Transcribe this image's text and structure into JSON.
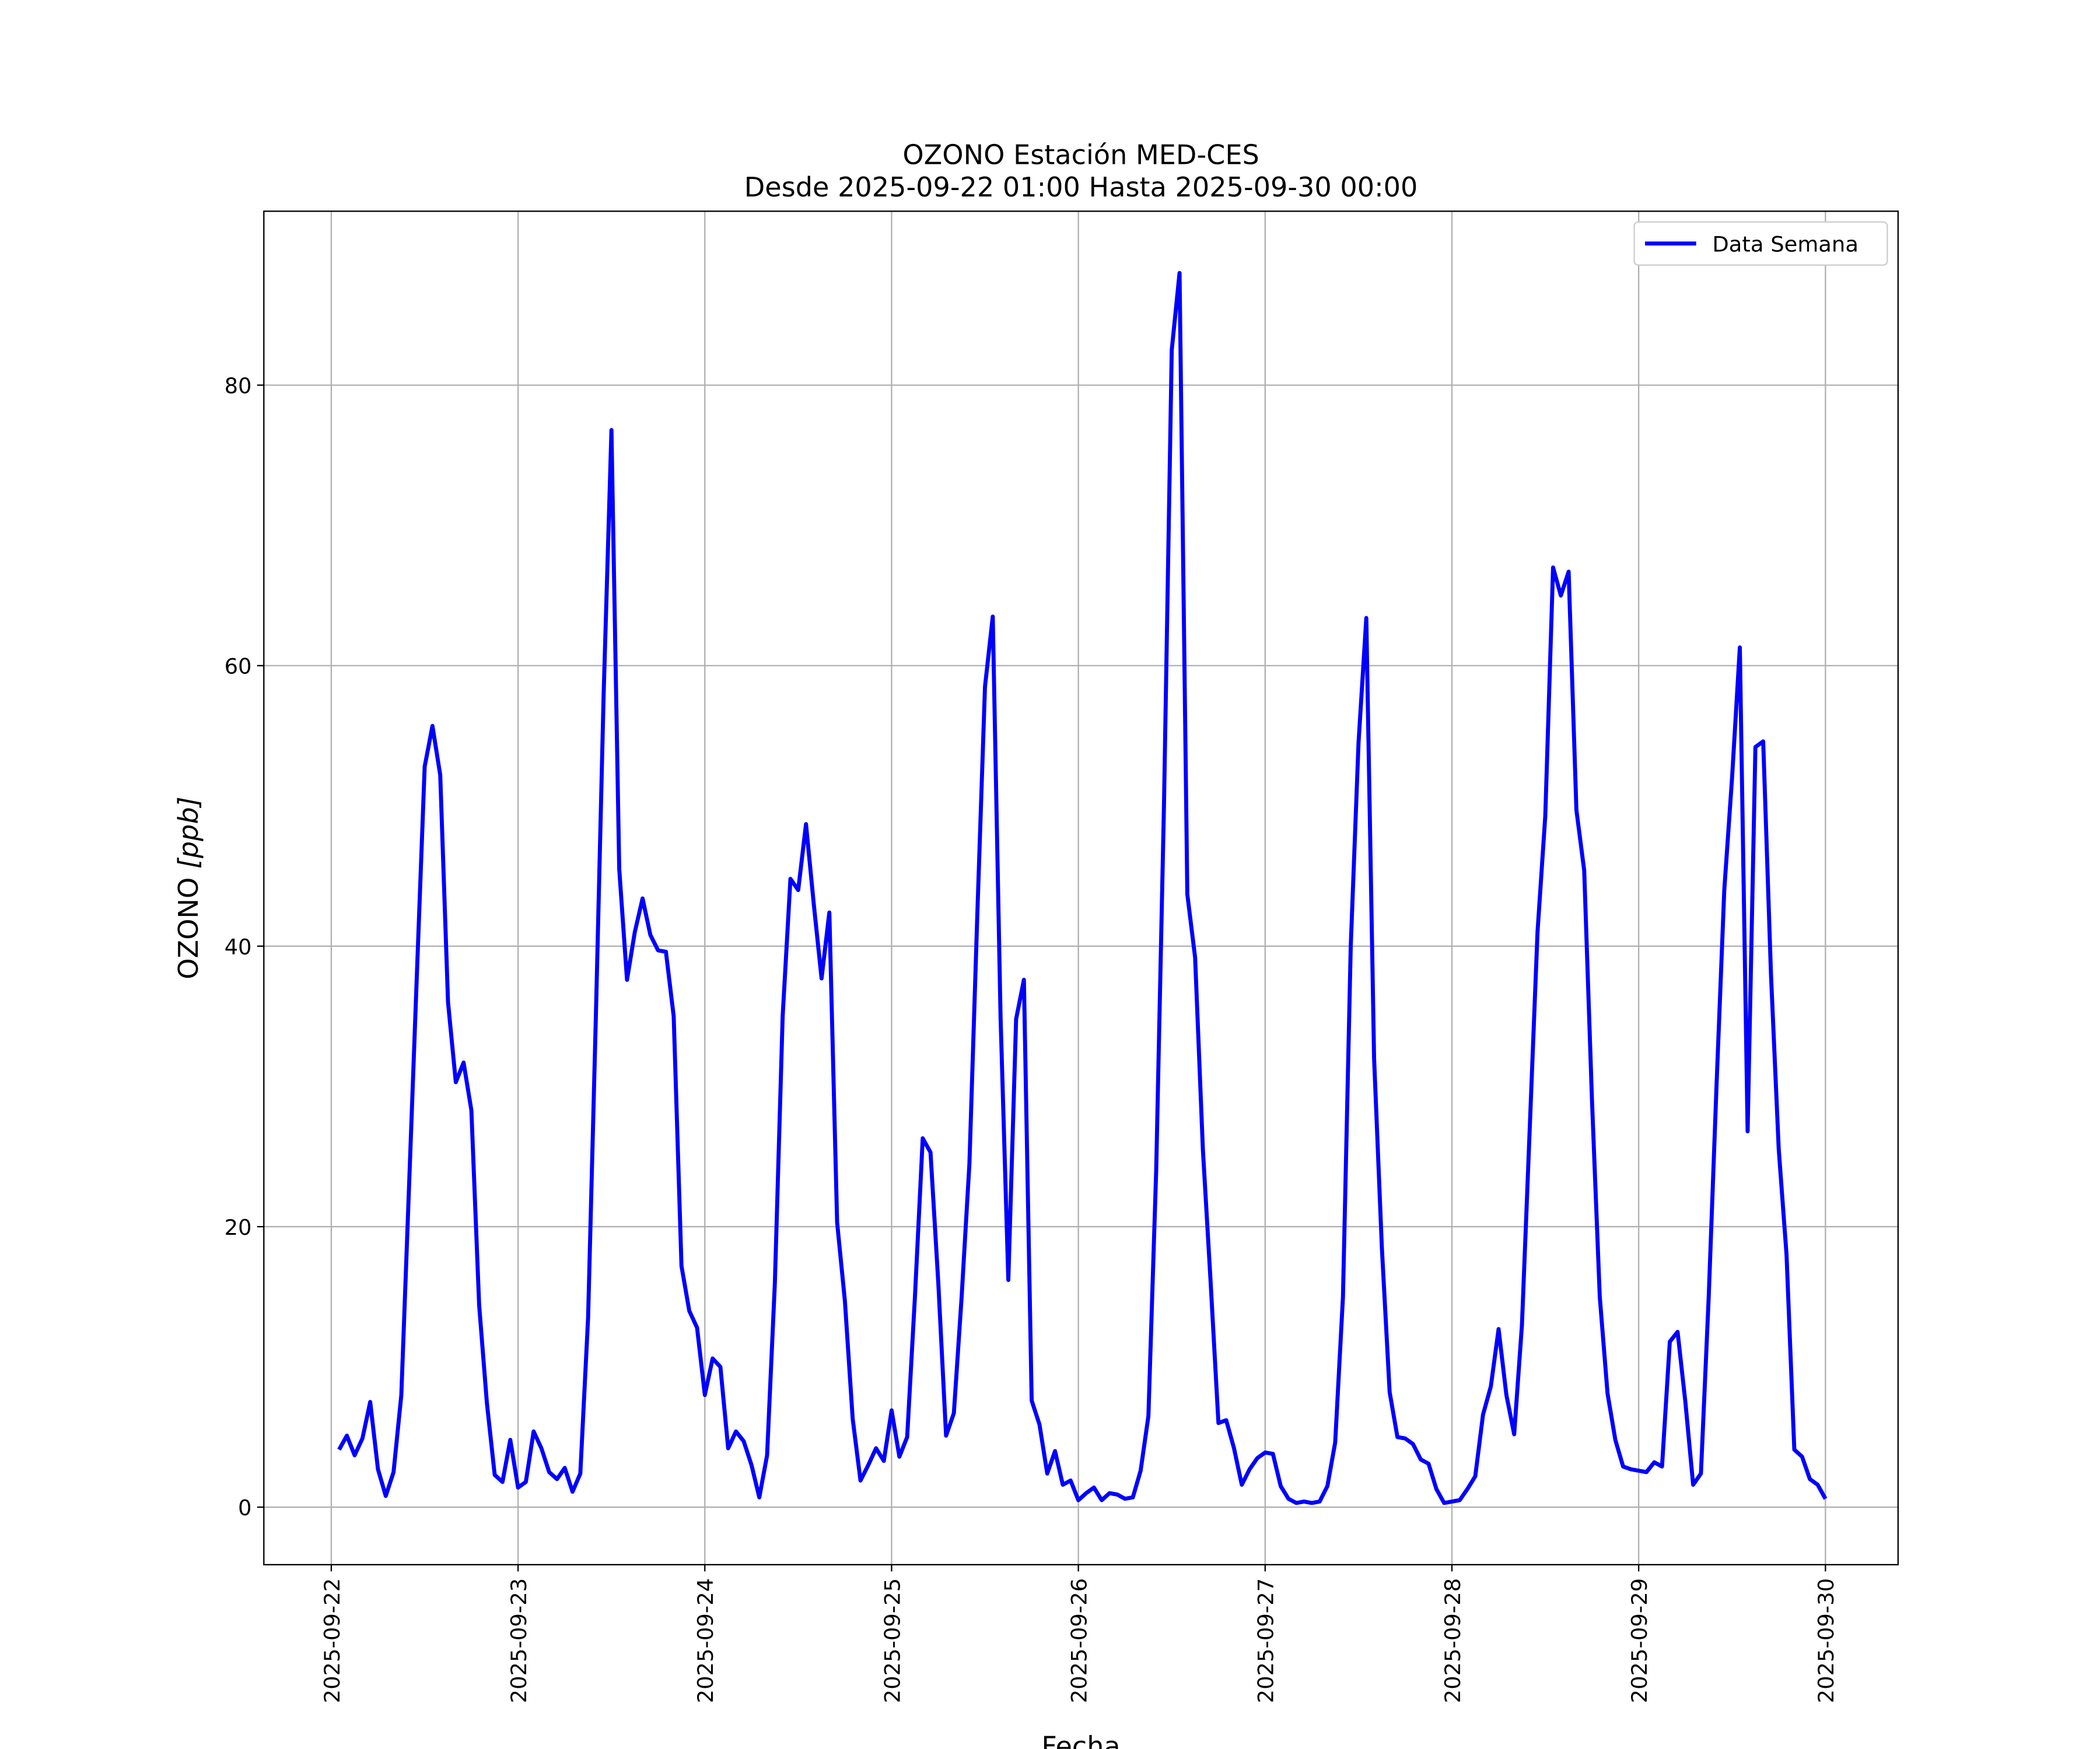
{
  "chart_data": {
    "type": "line",
    "title": "OZONO Estación MED-CES",
    "subtitle": "Desde 2025-09-22 01:00 Hasta 2025-09-30 00:00",
    "xlabel": "Fecha",
    "ylabel": "OZONO [ppb]",
    "ylabel_main": "OZONO ",
    "ylabel_unit": "[ppb]",
    "ylim": [
      -4.1,
      92.4
    ],
    "xlim": [
      "2025-09-21 15:20",
      "2025-09-30 09:20"
    ],
    "grid": true,
    "legend_placement": "top-right",
    "yticks": [
      "0",
      "20",
      "40",
      "60",
      "80"
    ],
    "xticks": [
      "2025-09-22",
      "2025-09-23",
      "2025-09-24",
      "2025-09-25",
      "2025-09-26",
      "2025-09-27",
      "2025-09-28",
      "2025-09-29",
      "2025-09-30"
    ],
    "series": [
      {
        "name": "Data Semana",
        "color": "#0000ff",
        "x_first": "2025-09-22 01:00",
        "x_last": "2025-09-30 00:00",
        "x_step": "1 hour",
        "values": [
          4.1,
          5.1,
          3.7,
          4.9,
          7.5,
          2.7,
          0.8,
          2.5,
          8.0,
          23,
          38,
          52.8,
          55.7,
          52.2,
          36,
          30.3,
          31.7,
          28.3,
          14.4,
          7.4,
          2.3,
          1.8,
          4.8,
          1.4,
          1.8,
          5.4,
          4.2,
          2.5,
          2.0,
          2.8,
          1.1,
          2.4,
          13.5,
          35,
          58,
          76.8,
          45.5,
          37.6,
          41,
          43.4,
          40.8,
          39.7,
          39.6,
          35,
          17.2,
          14,
          12.8,
          8.0,
          10.6,
          10.0,
          4.2,
          5.4,
          4.7,
          3.0,
          0.7,
          3.7,
          16,
          35,
          44.8,
          44,
          48.7,
          43,
          37.7,
          42.4,
          20.3,
          14.7,
          6.3,
          1.9,
          3.0,
          4.2,
          3.3,
          6.9,
          3.6,
          5.0,
          15,
          26.3,
          25.3,
          16,
          5.1,
          6.7,
          15,
          24.5,
          42,
          58.5,
          63.5,
          35,
          16.2,
          34.8,
          37.6,
          7.6,
          5.9,
          2.4,
          4.0,
          1.6,
          1.9,
          0.5,
          1.0,
          1.4,
          0.5,
          1.0,
          0.9,
          0.6,
          0.7,
          2.6,
          6.5,
          24,
          50,
          82.5,
          88,
          43.7,
          39.2,
          25.5,
          16,
          6.0,
          6.2,
          4.2,
          1.6,
          2.7,
          3.5,
          3.9,
          3.8,
          1.5,
          0.6,
          0.3,
          0.4,
          0.3,
          0.4,
          1.5,
          4.6,
          15,
          40,
          54.5,
          63.4,
          32,
          18.5,
          8.2,
          5.0,
          4.9,
          4.5,
          3.4,
          3.1,
          1.3,
          0.3,
          0.4,
          0.5,
          1.3,
          2.2,
          6.6,
          8.6,
          12.7,
          8.0,
          5.2,
          13,
          27,
          41,
          49.3,
          67,
          65,
          66.7,
          49.7,
          45.4,
          29,
          15,
          8.1,
          4.8,
          2.9,
          2.7,
          2.6,
          2.5,
          3.2,
          2.9,
          11.8,
          12.5,
          7.5,
          1.6,
          2.4,
          15,
          30,
          44,
          52,
          61.3,
          26.8,
          54.2,
          54.6,
          38,
          25.5,
          18,
          4.1,
          3.6,
          2.0,
          1.6,
          0.6
        ]
      }
    ]
  }
}
